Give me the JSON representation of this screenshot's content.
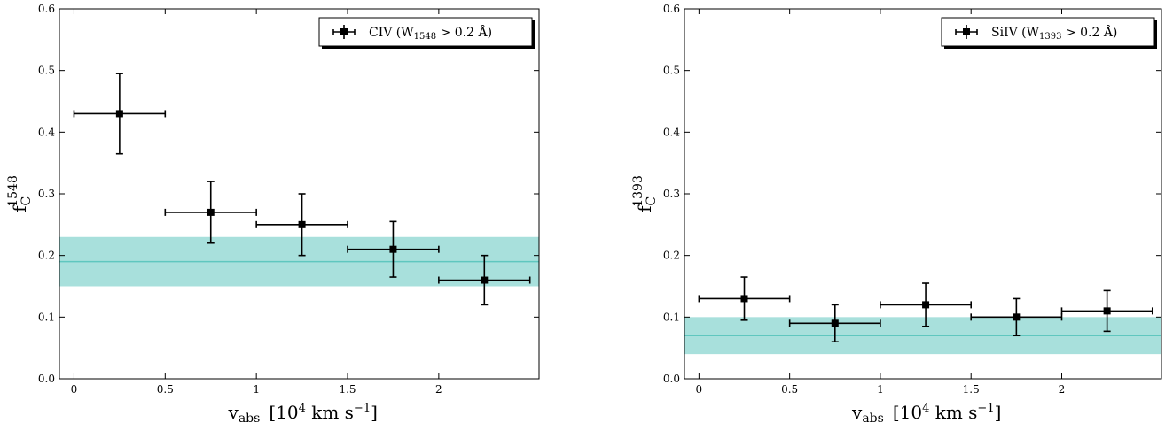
{
  "chart_data": [
    {
      "type": "scatter",
      "xlabel": {
        "main": "v",
        "sub": "abs",
        "rest1": "[10",
        "sup": "4",
        "rest2": " km s",
        "sup2": "−1",
        "rest3": "]"
      },
      "ylabel": {
        "main": "f",
        "sub": "C",
        "sup": "1548"
      },
      "xlim": [
        -0.08,
        2.55
      ],
      "ylim": [
        0.0,
        0.6
      ],
      "xticks": [
        0,
        0.5,
        1,
        1.5,
        2
      ],
      "xtick_labels": [
        "0",
        "0.5",
        "1",
        "1.5",
        "2"
      ],
      "yticks": [
        0.0,
        0.1,
        0.2,
        0.3,
        0.4,
        0.5,
        0.6
      ],
      "ytick_labels": [
        "0.0",
        "0.1",
        "0.2",
        "0.3",
        "0.4",
        "0.5",
        "0.6"
      ],
      "grid": false,
      "legend": {
        "position": "top-right",
        "label_main": "CIV (W",
        "label_sub": "1548",
        "label_rest": " > 0.2 Å)"
      },
      "band": {
        "center": 0.19,
        "low": 0.15,
        "high": 0.23,
        "color": "#a8e0dc",
        "line_color": "#5fc7bf"
      },
      "series": [
        {
          "x": [
            0.25,
            0.75,
            1.25,
            1.75,
            2.25
          ],
          "y": [
            0.43,
            0.27,
            0.25,
            0.21,
            0.16
          ],
          "xerr": [
            0.25,
            0.25,
            0.25,
            0.25,
            0.25
          ],
          "yerr_low": [
            0.065,
            0.05,
            0.05,
            0.045,
            0.04
          ],
          "yerr_high": [
            0.065,
            0.05,
            0.05,
            0.045,
            0.04
          ],
          "color": "#000000"
        }
      ]
    },
    {
      "type": "scatter",
      "xlabel": {
        "main": "v",
        "sub": "abs",
        "rest1": "[10",
        "sup": "4",
        "rest2": " km s",
        "sup2": "−1",
        "rest3": "]"
      },
      "ylabel": {
        "main": "f",
        "sub": "C",
        "sup": "1393"
      },
      "xlim": [
        -0.08,
        2.55
      ],
      "ylim": [
        0.0,
        0.6
      ],
      "xticks": [
        0,
        0.5,
        1,
        1.5,
        2
      ],
      "xtick_labels": [
        "0",
        "0.5",
        "1",
        "1.5",
        "2"
      ],
      "yticks": [
        0.0,
        0.1,
        0.2,
        0.3,
        0.4,
        0.5,
        0.6
      ],
      "ytick_labels": [
        "0.0",
        "0.1",
        "0.2",
        "0.3",
        "0.4",
        "0.5",
        "0.6"
      ],
      "grid": false,
      "legend": {
        "position": "top-right",
        "label_main": "SiIV (W",
        "label_sub": "1393",
        "label_rest": " > 0.2 Å)"
      },
      "band": {
        "center": 0.07,
        "low": 0.04,
        "high": 0.1,
        "color": "#a8e0dc",
        "line_color": "#5fc7bf"
      },
      "series": [
        {
          "x": [
            0.25,
            0.75,
            1.25,
            1.75,
            2.25
          ],
          "y": [
            0.13,
            0.09,
            0.12,
            0.1,
            0.11
          ],
          "xerr": [
            0.25,
            0.25,
            0.25,
            0.25,
            0.25
          ],
          "yerr_low": [
            0.035,
            0.03,
            0.035,
            0.03,
            0.033
          ],
          "yerr_high": [
            0.035,
            0.03,
            0.035,
            0.03,
            0.033
          ],
          "color": "#000000"
        }
      ]
    }
  ]
}
